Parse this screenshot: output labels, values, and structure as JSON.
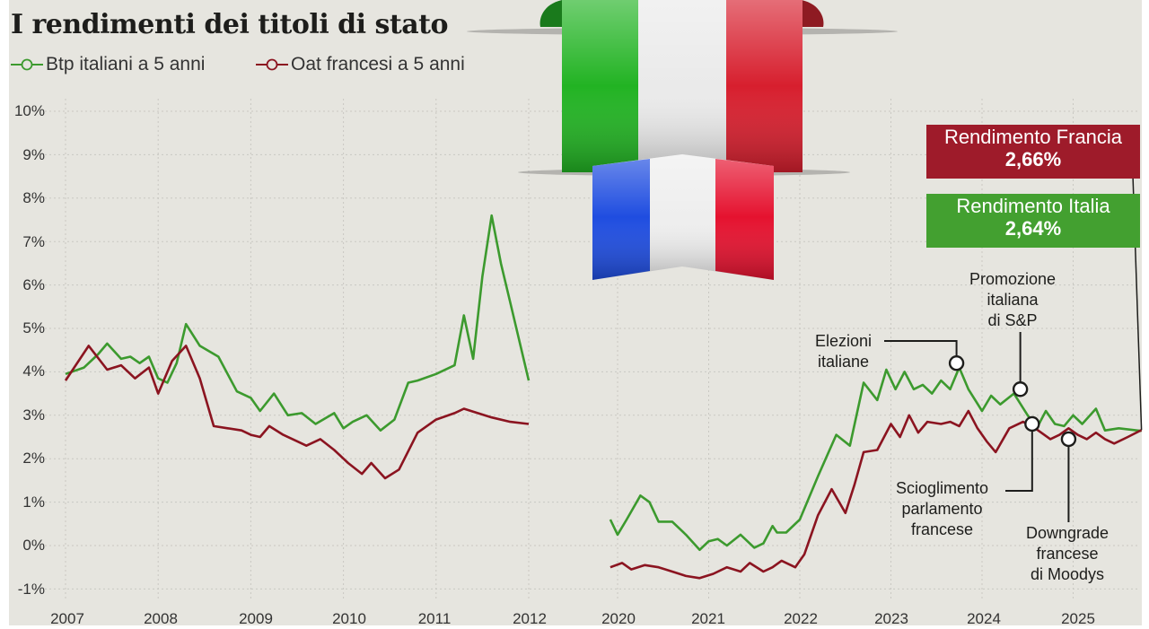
{
  "title": "I rendimenti dei titoli di stato",
  "legend": {
    "italy": "Btp italiani a 5 anni",
    "france": "Oat francesi a 5 anni"
  },
  "colors": {
    "italy": "#3c9a2e",
    "france": "#8b1420",
    "background": "#e6e5df"
  },
  "boxes": {
    "france": {
      "label": "Rendimento Francia",
      "value": "2,66%"
    },
    "italy": {
      "label": "Rendimento Italia",
      "value": "2,64%"
    }
  },
  "annotations": [
    {
      "id": "elezioni",
      "lines": [
        "Elezioni",
        "italiane"
      ]
    },
    {
      "id": "promozione",
      "lines": [
        "Promozione",
        "italiana",
        "di S&P"
      ]
    },
    {
      "id": "scioglimento",
      "lines": [
        "Scioglimento",
        "parlamento",
        "francese"
      ]
    },
    {
      "id": "downgrade",
      "lines": [
        "Downgrade",
        "francese",
        "di Moodys"
      ]
    }
  ],
  "chart_data": {
    "type": "line",
    "title": "I rendimenti dei titoli di stato",
    "ylabel": "",
    "xlabel": "",
    "ylim": [
      -1,
      10
    ],
    "y_ticks": [
      "10%",
      "9%",
      "8%",
      "7%",
      "6%",
      "5%",
      "4%",
      "3%",
      "2%",
      "1%",
      "0%",
      "-1%"
    ],
    "x_ticks": [
      "2007",
      "2008",
      "2009",
      "2010",
      "2011",
      "2012",
      "2020",
      "2021",
      "2022",
      "2023",
      "2024",
      "2025"
    ],
    "segments": [
      {
        "range": [
          2007,
          2012
        ],
        "series": [
          {
            "name": "Btp italiani a 5 anni",
            "x": [
              2007.0,
              2007.2,
              2007.35,
              2007.45,
              2007.6,
              2007.7,
              2007.8,
              2007.9,
              2008.0,
              2008.1,
              2008.2,
              2008.3,
              2008.45,
              2008.65,
              2008.85,
              2009.0,
              2009.1,
              2009.25,
              2009.4,
              2009.55,
              2009.7,
              2009.9,
              2010.0,
              2010.1,
              2010.25,
              2010.4,
              2010.55,
              2010.7,
              2010.8,
              2011.0,
              2011.2,
              2011.3,
              2011.4,
              2011.5,
              2011.6,
              2011.7,
              2011.8,
              2011.9,
              2012.0
            ],
            "y": [
              3.95,
              4.1,
              4.4,
              4.65,
              4.3,
              4.35,
              4.2,
              4.35,
              3.85,
              3.75,
              4.2,
              5.1,
              4.6,
              4.35,
              3.55,
              3.4,
              3.1,
              3.5,
              3.0,
              3.05,
              2.8,
              3.05,
              2.7,
              2.85,
              3.0,
              2.65,
              2.9,
              3.75,
              3.8,
              3.95,
              4.15,
              5.3,
              4.3,
              6.2,
              7.6,
              6.5,
              5.6,
              4.7,
              3.8
            ]
          },
          {
            "name": "Oat francesi a 5 anni",
            "x": [
              2007.0,
              2007.25,
              2007.45,
              2007.6,
              2007.75,
              2007.9,
              2008.0,
              2008.15,
              2008.3,
              2008.45,
              2008.6,
              2008.75,
              2008.9,
              2009.0,
              2009.1,
              2009.2,
              2009.35,
              2009.5,
              2009.6,
              2009.75,
              2009.9,
              2010.05,
              2010.2,
              2010.3,
              2010.45,
              2010.6,
              2010.8,
              2011.0,
              2011.2,
              2011.3,
              2011.45,
              2011.6,
              2011.8,
              2012.0
            ],
            "y": [
              3.8,
              4.6,
              4.05,
              4.15,
              3.85,
              4.1,
              3.5,
              4.25,
              4.6,
              3.85,
              2.75,
              2.7,
              2.65,
              2.55,
              2.5,
              2.75,
              2.55,
              2.4,
              2.3,
              2.45,
              2.2,
              1.9,
              1.65,
              1.9,
              1.55,
              1.75,
              2.6,
              2.9,
              3.05,
              3.15,
              3.05,
              2.95,
              2.85,
              2.8
            ]
          }
        ]
      },
      {
        "range": [
          2020,
          2025.75
        ],
        "series": [
          {
            "name": "Btp italiani a 5 anni",
            "x": [
              2019.92,
              2020.0,
              2020.1,
              2020.25,
              2020.35,
              2020.45,
              2020.6,
              2020.75,
              2020.9,
              2021.0,
              2021.1,
              2021.2,
              2021.35,
              2021.5,
              2021.6,
              2021.7,
              2021.75,
              2021.85,
              2022.0,
              2022.2,
              2022.4,
              2022.55,
              2022.7,
              2022.85,
              2022.95,
              2023.05,
              2023.15,
              2023.25,
              2023.35,
              2023.45,
              2023.55,
              2023.65,
              2023.75,
              2023.85,
              2024.0,
              2024.1,
              2024.2,
              2024.35,
              2024.5,
              2024.6,
              2024.7,
              2024.8,
              2024.9,
              2025.0,
              2025.1,
              2025.25,
              2025.35,
              2025.5,
              2025.75
            ],
            "y": [
              0.6,
              0.25,
              0.6,
              1.15,
              1.0,
              0.55,
              0.55,
              0.25,
              -0.1,
              0.1,
              0.15,
              0.0,
              0.25,
              -0.05,
              0.05,
              0.45,
              0.3,
              0.3,
              0.6,
              1.6,
              2.55,
              2.3,
              3.75,
              3.35,
              4.05,
              3.6,
              4.0,
              3.6,
              3.7,
              3.5,
              3.8,
              3.6,
              4.1,
              3.6,
              3.1,
              3.45,
              3.25,
              3.5,
              3.0,
              2.7,
              3.1,
              2.8,
              2.75,
              3.0,
              2.8,
              3.15,
              2.65,
              2.7,
              2.64
            ]
          },
          {
            "name": "Oat francesi a 5 anni",
            "x": [
              2019.92,
              2020.05,
              2020.15,
              2020.3,
              2020.45,
              2020.6,
              2020.75,
              2020.9,
              2021.05,
              2021.2,
              2021.35,
              2021.45,
              2021.6,
              2021.7,
              2021.8,
              2021.95,
              2022.05,
              2022.2,
              2022.35,
              2022.5,
              2022.6,
              2022.7,
              2022.85,
              2023.0,
              2023.1,
              2023.2,
              2023.3,
              2023.4,
              2023.55,
              2023.65,
              2023.75,
              2023.85,
              2023.95,
              2024.05,
              2024.15,
              2024.3,
              2024.45,
              2024.55,
              2024.65,
              2024.75,
              2024.85,
              2024.95,
              2025.05,
              2025.15,
              2025.25,
              2025.35,
              2025.45,
              2025.6,
              2025.75
            ],
            "y": [
              -0.5,
              -0.4,
              -0.55,
              -0.45,
              -0.5,
              -0.6,
              -0.7,
              -0.75,
              -0.65,
              -0.5,
              -0.6,
              -0.4,
              -0.6,
              -0.5,
              -0.35,
              -0.5,
              -0.2,
              0.7,
              1.3,
              0.75,
              1.4,
              2.15,
              2.2,
              2.8,
              2.5,
              3.0,
              2.6,
              2.85,
              2.8,
              2.85,
              2.75,
              3.1,
              2.7,
              2.4,
              2.15,
              2.7,
              2.85,
              2.75,
              2.6,
              2.45,
              2.55,
              2.7,
              2.55,
              2.45,
              2.6,
              2.45,
              2.35,
              2.5,
              2.66
            ]
          }
        ]
      }
    ],
    "events": [
      {
        "label": "Elezioni italiane",
        "x": 2023.72,
        "y": 4.2
      },
      {
        "label": "Promozione italiana di S&P",
        "x": 2024.42,
        "y": 3.6
      },
      {
        "label": "Scioglimento parlamento francese",
        "x": 2024.55,
        "y": 2.8
      },
      {
        "label": "Downgrade francese di Moodys",
        "x": 2024.95,
        "y": 2.45
      }
    ]
  }
}
